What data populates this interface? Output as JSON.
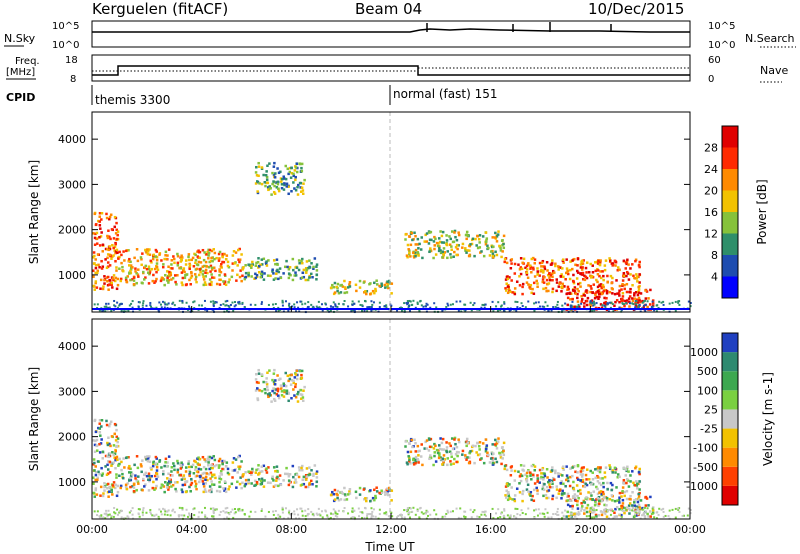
{
  "header": {
    "station": "Kerguelen (fitACF)",
    "beam": "Beam 04",
    "date": "10/Dec/2015"
  },
  "top_panels": {
    "nsky_label": "N.Sky",
    "nsky_tick_high": "10^5",
    "nsky_tick_low": "10^0",
    "nsearch_label": "N.Search",
    "nsearch_tick_high": "10^5",
    "nsearch_tick_low": "10^0",
    "freq_label": "Freq.",
    "freq_unit": "[MHz]",
    "freq_tick_high": "18",
    "freq_tick_low": "8",
    "nave_label": "Nave",
    "nave_tick_high": "60",
    "nave_tick_low": "0",
    "cpid_label": "CPID",
    "cpid_mode_1": "themis 3300",
    "cpid_mode_2": "normal (fast) 151"
  },
  "chart_data": [
    {
      "type": "heatmap",
      "title": "Power",
      "ylabel": "Slant Range [km]",
      "xlabel": "",
      "colorbar_label": "Power [dB]",
      "ylim": [
        180,
        4600
      ],
      "xlim": [
        0,
        24
      ],
      "yticks": [
        "1000",
        "2000",
        "3000",
        "4000"
      ],
      "colorbar_ticks": [
        "4",
        "8",
        "12",
        "16",
        "20",
        "24",
        "28"
      ],
      "colorbar_colors": [
        "#0000ff",
        "#1e4db0",
        "#2f8f6a",
        "#86c23a",
        "#f2c200",
        "#ff8a00",
        "#ff2a00",
        "#e00000"
      ],
      "features": [
        {
          "t0": 0.0,
          "t1": 1.0,
          "r0": 700,
          "r1": 2400,
          "level": 24
        },
        {
          "t0": 1.0,
          "t1": 6.0,
          "r0": 800,
          "r1": 1600,
          "level": 20
        },
        {
          "t0": 6.0,
          "t1": 9.0,
          "r0": 900,
          "r1": 1400,
          "level": 12
        },
        {
          "t0": 6.5,
          "t1": 8.5,
          "r0": 2800,
          "r1": 3500,
          "level": 12
        },
        {
          "t0": 9.5,
          "t1": 12.0,
          "r0": 600,
          "r1": 900,
          "level": 16
        },
        {
          "t0": 12.5,
          "t1": 16.5,
          "r0": 1400,
          "r1": 2000,
          "level": 16
        },
        {
          "t0": 16.5,
          "t1": 22.0,
          "r0": 600,
          "r1": 1400,
          "level": 24
        },
        {
          "t0": 19.0,
          "t1": 22.5,
          "r0": 250,
          "r1": 700,
          "level": 28
        }
      ]
    },
    {
      "type": "heatmap",
      "title": "Velocity",
      "ylabel": "Slant Range [km]",
      "xlabel": "Time UT",
      "colorbar_label": "Velocity [m s-1]",
      "ylim": [
        180,
        4600
      ],
      "xlim": [
        0,
        24
      ],
      "xticks": [
        "00:00",
        "04:00",
        "08:00",
        "12:00",
        "16:00",
        "20:00",
        "00:00"
      ],
      "yticks": [
        "1000",
        "2000",
        "3000",
        "4000"
      ],
      "colorbar_ticks": [
        "1000",
        "500",
        "100",
        "25",
        "-25",
        "-100",
        "-500",
        "-1000"
      ],
      "colorbar_colors": [
        "#2040c0",
        "#2e8a70",
        "#3da850",
        "#7ad040",
        "#c8c8c8",
        "#f2c200",
        "#ff8a00",
        "#ff4000",
        "#e00000"
      ]
    }
  ]
}
